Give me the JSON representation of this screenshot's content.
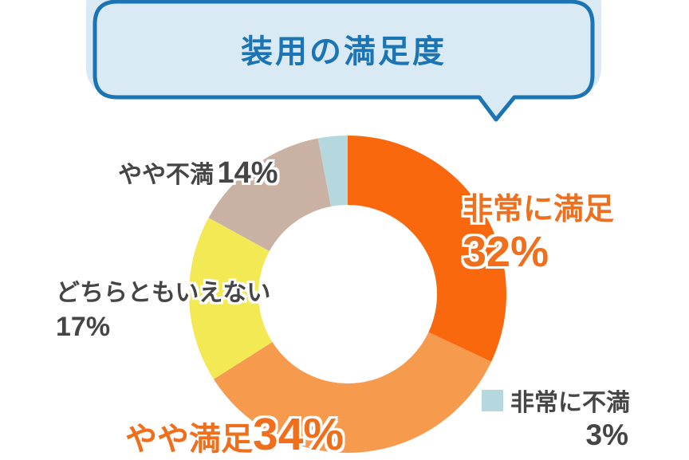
{
  "title": {
    "text": "装用の満足度"
  },
  "colors": {
    "bubble_fill": "#d9eaf5",
    "bubble_border": "#1b74b3",
    "title_text": "#1b74b3",
    "label_grey": "#454545",
    "label_orange": "#ef6f1c"
  },
  "chart_data": {
    "type": "pie",
    "subtype": "donut",
    "title": "装用の満足度",
    "start_angle_deg": 0,
    "direction": "clockwise",
    "categories": [
      "非常に満足",
      "やや満足",
      "どちらともいえない",
      "やや不満",
      "非常に不満"
    ],
    "values": [
      32,
      34,
      17,
      14,
      3
    ],
    "unit": "%",
    "colors": [
      "#fa680e",
      "#f69a4e",
      "#f2e955",
      "#c9b2a4",
      "#b5d8df"
    ],
    "legend_position": "bottom-right-only-very-dissatisfied"
  },
  "labels": {
    "very_satisfied": {
      "name": "非常に満足",
      "value": "32%"
    },
    "somewhat_satisfied": {
      "name": "やや満足",
      "value": "34%"
    },
    "neutral": {
      "name": "どちらともいえない",
      "value": "17%"
    },
    "somewhat_dissatisfied": {
      "name": "やや不満",
      "value": "14%"
    },
    "very_dissatisfied": {
      "name": "非常に不満",
      "value": "3%"
    }
  }
}
